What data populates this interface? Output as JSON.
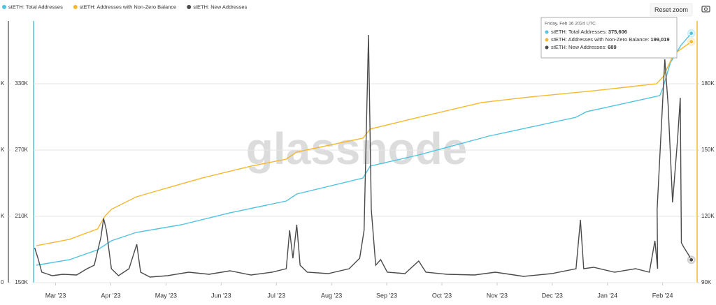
{
  "chart_data": {
    "type": "line",
    "watermark": "glassnode",
    "xlim": [
      -0.4,
      11.6
    ],
    "xticks": [
      {
        "value": 0,
        "label": "Mar '23"
      },
      {
        "value": 1,
        "label": "Apr '23"
      },
      {
        "value": 2,
        "label": "May '23"
      },
      {
        "value": 3,
        "label": "Jun '23"
      },
      {
        "value": 4,
        "label": "Jul '23"
      },
      {
        "value": 5,
        "label": "Aug '23"
      },
      {
        "value": 6,
        "label": "Sep '23"
      },
      {
        "value": 7,
        "label": "Oct '23"
      },
      {
        "value": 8,
        "label": "Nov '23"
      },
      {
        "value": 9,
        "label": "Dec '23"
      },
      {
        "value": 10,
        "label": "Jan '24"
      },
      {
        "value": 11,
        "label": "Feb '24"
      }
    ],
    "ylim": [
      150000,
      386842
    ],
    "yticks": [
      {
        "value": 150000,
        "label": "150K"
      },
      {
        "value": 210000,
        "label": "210K"
      },
      {
        "value": 270000,
        "label": "270K"
      },
      {
        "value": 330000,
        "label": "330K"
      }
    ],
    "y2lim": [
      90000,
      208421
    ],
    "y2ticks": [
      {
        "value": 90000,
        "label": "90K"
      },
      {
        "value": 120000,
        "label": "120K"
      },
      {
        "value": 150000,
        "label": "150K"
      },
      {
        "value": 180000,
        "label": "180K"
      }
    ],
    "y3lim": [
      0,
      7895
    ],
    "y3ticks": [
      0,
      {
        "value": 2000,
        "label": "K"
      },
      {
        "value": 4000,
        "label": "K"
      },
      {
        "value": 6000,
        "label": "K"
      }
    ],
    "grid": true,
    "series": [
      {
        "name": "stETH: Total Addresses",
        "color": "#4fc3e0",
        "axis": "y",
        "x": [
          -0.35,
          0.25,
          0.76,
          1.01,
          1.46,
          2.28,
          3.16,
          4.18,
          4.37,
          5.57,
          5.7,
          6.58,
          7.85,
          8.61,
          9.43,
          9.62,
          10.38,
          10.95,
          11.01,
          11.14,
          11.33,
          11.52
        ],
        "values": [
          165800,
          170800,
          179700,
          187900,
          195500,
          202400,
          213200,
          223900,
          230200,
          244700,
          255500,
          265600,
          282600,
          290800,
          299700,
          304700,
          313000,
          319300,
          326800,
          349000,
          364700,
          375606
        ]
      },
      {
        "name": "stETH: Addresses with Non-Zero Balance",
        "color": "#f5b82e",
        "axis": "y2",
        "x": [
          -0.35,
          0.25,
          0.76,
          0.89,
          1.01,
          1.46,
          1.9,
          2.66,
          3.54,
          4.18,
          4.37,
          5.57,
          5.7,
          6.58,
          7.72,
          8.48,
          9.75,
          10.89,
          11.01,
          11.2,
          11.52
        ],
        "values": [
          106700,
          109600,
          114300,
          120000,
          123200,
          128800,
          132000,
          137400,
          142700,
          145900,
          149100,
          155400,
          159500,
          164800,
          171500,
          173700,
          176800,
          180000,
          183200,
          193300,
          199019
        ]
      },
      {
        "name": "stETH: New Addresses",
        "color": "#4a4a4a",
        "axis": "y3",
        "x": [
          -0.38,
          -0.32,
          -0.25,
          -0.06,
          0.13,
          0.38,
          0.57,
          0.7,
          0.82,
          0.87,
          0.92,
          1.01,
          1.14,
          1.33,
          1.47,
          1.54,
          1.71,
          2.03,
          2.41,
          2.78,
          3.16,
          3.54,
          3.92,
          4.18,
          4.24,
          4.3,
          4.37,
          4.43,
          4.56,
          4.94,
          5.32,
          5.51,
          5.59,
          5.67,
          5.72,
          5.8,
          5.89,
          6.01,
          6.33,
          6.58,
          6.71,
          7.09,
          7.59,
          7.97,
          8.48,
          8.99,
          9.43,
          9.51,
          9.57,
          9.75,
          10.13,
          10.51,
          10.76,
          10.86,
          10.91,
          10.9,
          11.04,
          11.1,
          11.18,
          11.27,
          11.32,
          11.34,
          11.39,
          11.47,
          11.52
        ],
        "values": [
          1053,
          737,
          316,
          211,
          253,
          232,
          421,
          526,
          1368,
          1937,
          1579,
          421,
          211,
          421,
          1158,
          316,
          168,
          211,
          316,
          253,
          358,
          232,
          316,
          421,
          1579,
          737,
          1747,
          526,
          316,
          274,
          421,
          737,
          1579,
          7474,
          2211,
          526,
          695,
          316,
          274,
          653,
          316,
          253,
          232,
          316,
          189,
          274,
          421,
          1895,
          421,
          463,
          316,
          421,
          316,
          1263,
          421,
          2211,
          6737,
          5368,
          2421,
          4316,
          5579,
          1200,
          1053,
          842,
          689
        ]
      }
    ],
    "tooltip": {
      "title": "Friday, Feb 16 2024 UTC",
      "value_labels": [
        "375,606",
        "199,019",
        "689"
      ]
    },
    "reset_button": "Reset zoom"
  }
}
